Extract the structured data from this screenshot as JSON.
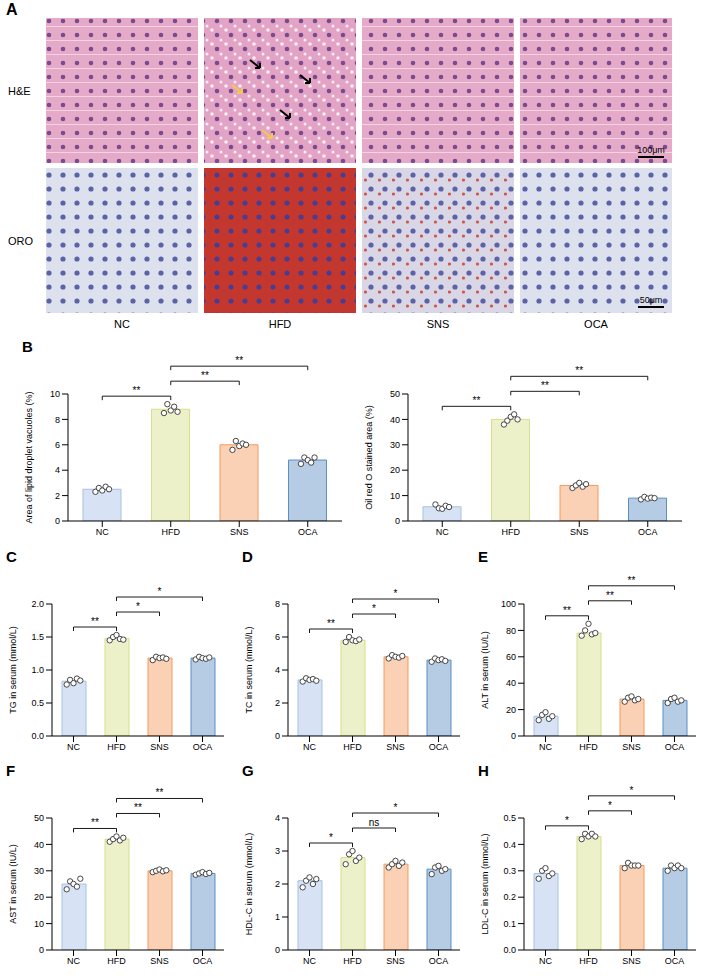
{
  "panel_a": {
    "letter": "A",
    "rows": [
      "H&E",
      "ORO"
    ],
    "columns": [
      "NC",
      "HFD",
      "SNS",
      "OCA"
    ],
    "scale_bars": [
      "100μm",
      "50μm"
    ]
  },
  "chart_data": [
    {
      "letter": "B",
      "type": "bar",
      "y_label": "Area of lipid droplet vacuoles (%)",
      "categories": [
        "NC",
        "HFD",
        "SNS",
        "OCA"
      ],
      "values": [
        2.5,
        8.8,
        6.0,
        4.8
      ],
      "points": [
        [
          2.3,
          2.6,
          2.4,
          2.7,
          2.5
        ],
        [
          8.5,
          9.2,
          8.7,
          9.0,
          8.6
        ],
        [
          5.6,
          6.3,
          5.9,
          6.1,
          6.0
        ],
        [
          4.5,
          5.0,
          4.8,
          4.6,
          5.0
        ]
      ],
      "colors": [
        "#a7c0e6",
        "#d7df8a",
        "#f39a5c",
        "#5a8fc4"
      ],
      "ylim": [
        0,
        10
      ],
      "yticks": [
        0,
        2,
        4,
        6,
        8,
        10
      ],
      "comparisons": [
        {
          "groups": [
            "NC",
            "HFD"
          ],
          "label": "**"
        },
        {
          "groups": [
            "HFD",
            "SNS"
          ],
          "label": "**"
        },
        {
          "groups": [
            "HFD",
            "OCA"
          ],
          "label": "**"
        }
      ]
    },
    {
      "letter": "",
      "type": "bar",
      "y_label": "Oil red O stained area (%)",
      "categories": [
        "NC",
        "HFD",
        "SNS",
        "OCA"
      ],
      "values": [
        5.6,
        40.0,
        14.0,
        9.0
      ],
      "points": [
        [
          6.5,
          5,
          4.8,
          6,
          5.5
        ],
        [
          38,
          39.5,
          41,
          42,
          40
        ],
        [
          13,
          14,
          15,
          13.5,
          14.5
        ],
        [
          8.5,
          9.5,
          8.8,
          9.2,
          9
        ]
      ],
      "colors": [
        "#a7c0e6",
        "#d7df8a",
        "#f39a5c",
        "#5a8fc4"
      ],
      "ylim": [
        0,
        50
      ],
      "yticks": [
        0,
        10,
        20,
        30,
        40,
        50
      ],
      "comparisons": [
        {
          "groups": [
            "NC",
            "HFD"
          ],
          "label": "**"
        },
        {
          "groups": [
            "HFD",
            "SNS"
          ],
          "label": "**"
        },
        {
          "groups": [
            "HFD",
            "OCA"
          ],
          "label": "**"
        }
      ]
    },
    {
      "letter": "C",
      "type": "bar",
      "y_label": "TG in serum (mmol/L)",
      "categories": [
        "NC",
        "HFD",
        "SNS",
        "OCA"
      ],
      "values": [
        0.83,
        1.48,
        1.18,
        1.18
      ],
      "points": [
        [
          0.78,
          0.85,
          0.8,
          0.87,
          0.84
        ],
        [
          1.45,
          1.5,
          1.53,
          1.47,
          1.46
        ],
        [
          1.15,
          1.2,
          1.18,
          1.19,
          1.17
        ],
        [
          1.16,
          1.2,
          1.18,
          1.17,
          1.19
        ]
      ],
      "colors": [
        "#a7c0e6",
        "#d7df8a",
        "#f39a5c",
        "#5a8fc4"
      ],
      "ylim": [
        0,
        2
      ],
      "yticks": [
        {
          "value": 0,
          "label": "0.0"
        },
        0.5,
        {
          "value": 1,
          "label": "1.0"
        },
        1.5,
        {
          "value": 2,
          "label": "2.0"
        }
      ],
      "comparisons": [
        {
          "groups": [
            "NC",
            "HFD"
          ],
          "label": "**"
        },
        {
          "groups": [
            "HFD",
            "SNS"
          ],
          "label": "*"
        },
        {
          "groups": [
            "HFD",
            "OCA"
          ],
          "label": "*"
        }
      ]
    },
    {
      "letter": "D",
      "type": "bar",
      "y_label": "TC in serum (mmol/L)",
      "categories": [
        "NC",
        "HFD",
        "SNS",
        "OCA"
      ],
      "values": [
        3.4,
        5.8,
        4.8,
        4.6
      ],
      "points": [
        [
          3.3,
          3.5,
          3.4,
          3.45,
          3.35
        ],
        [
          5.7,
          6.0,
          5.8,
          5.75,
          5.85
        ],
        [
          4.7,
          4.9,
          4.8,
          4.75,
          4.85
        ],
        [
          4.5,
          4.7,
          4.6,
          4.65,
          4.55
        ]
      ],
      "colors": [
        "#a7c0e6",
        "#d7df8a",
        "#f39a5c",
        "#5a8fc4"
      ],
      "ylim": [
        0,
        8
      ],
      "yticks": [
        0,
        2,
        4,
        6,
        8
      ],
      "comparisons": [
        {
          "groups": [
            "NC",
            "HFD"
          ],
          "label": "**"
        },
        {
          "groups": [
            "HFD",
            "SNS"
          ],
          "label": "*"
        },
        {
          "groups": [
            "HFD",
            "OCA"
          ],
          "label": "*"
        }
      ]
    },
    {
      "letter": "E",
      "type": "bar",
      "y_label": "ALT in serum (IU/L)",
      "categories": [
        "NC",
        "HFD",
        "SNS",
        "OCA"
      ],
      "values": [
        15,
        78,
        28,
        27
      ],
      "points": [
        [
          12,
          16,
          18,
          13,
          15
        ],
        [
          76,
          80,
          85,
          77,
          78
        ],
        [
          26,
          29,
          30,
          27,
          28
        ],
        [
          25,
          28,
          29,
          26,
          27
        ]
      ],
      "colors": [
        "#a7c0e6",
        "#d7df8a",
        "#f39a5c",
        "#5a8fc4"
      ],
      "ylim": [
        0,
        100
      ],
      "yticks": [
        0,
        20,
        40,
        60,
        80,
        100
      ],
      "comparisons": [
        {
          "groups": [
            "NC",
            "HFD"
          ],
          "label": "**"
        },
        {
          "groups": [
            "HFD",
            "SNS"
          ],
          "label": "**"
        },
        {
          "groups": [
            "HFD",
            "OCA"
          ],
          "label": "**"
        }
      ]
    },
    {
      "letter": "F",
      "type": "bar",
      "y_label": "AST in serum (IU/L)",
      "categories": [
        "NC",
        "HFD",
        "SNS",
        "OCA"
      ],
      "values": [
        25,
        42,
        30,
        29
      ],
      "points": [
        [
          23,
          26,
          25,
          24,
          27
        ],
        [
          41,
          42,
          43,
          41.5,
          42.5
        ],
        [
          29.5,
          30,
          30.5,
          29.8,
          30.2
        ],
        [
          28.5,
          29,
          29.5,
          28.8,
          29.2
        ]
      ],
      "colors": [
        "#a7c0e6",
        "#d7df8a",
        "#f39a5c",
        "#5a8fc4"
      ],
      "ylim": [
        0,
        50
      ],
      "yticks": [
        0,
        10,
        20,
        30,
        40,
        50
      ],
      "comparisons": [
        {
          "groups": [
            "NC",
            "HFD"
          ],
          "label": "**"
        },
        {
          "groups": [
            "HFD",
            "SNS"
          ],
          "label": "**"
        },
        {
          "groups": [
            "HFD",
            "OCA"
          ],
          "label": "**"
        }
      ]
    },
    {
      "letter": "G",
      "type": "bar",
      "y_label": "HDL-C in serum (mmol/L)",
      "categories": [
        "NC",
        "HFD",
        "SNS",
        "OCA"
      ],
      "values": [
        2.1,
        2.8,
        2.6,
        2.45
      ],
      "points": [
        [
          1.9,
          2.1,
          2.2,
          2.0,
          2.15
        ],
        [
          2.6,
          2.9,
          3.0,
          2.7,
          2.8
        ],
        [
          2.5,
          2.6,
          2.7,
          2.55,
          2.65
        ],
        [
          2.3,
          2.5,
          2.55,
          2.4,
          2.45
        ]
      ],
      "colors": [
        "#a7c0e6",
        "#d7df8a",
        "#f39a5c",
        "#5a8fc4"
      ],
      "ylim": [
        0,
        4
      ],
      "yticks": [
        0,
        1,
        2,
        3,
        4
      ],
      "comparisons": [
        {
          "groups": [
            "NC",
            "HFD"
          ],
          "label": "*"
        },
        {
          "groups": [
            "HFD",
            "SNS"
          ],
          "label": "ns"
        },
        {
          "groups": [
            "HFD",
            "OCA"
          ],
          "label": "*"
        }
      ]
    },
    {
      "letter": "H",
      "type": "bar",
      "y_label": "LDL-C in serum (mmol/L)",
      "categories": [
        "NC",
        "HFD",
        "SNS",
        "OCA"
      ],
      "values": [
        0.29,
        0.43,
        0.32,
        0.31
      ],
      "points": [
        [
          0.27,
          0.3,
          0.31,
          0.28,
          0.29
        ],
        [
          0.42,
          0.44,
          0.43,
          0.44,
          0.43
        ],
        [
          0.31,
          0.33,
          0.32,
          0.32,
          0.32
        ],
        [
          0.3,
          0.32,
          0.31,
          0.32,
          0.31
        ]
      ],
      "colors": [
        "#a7c0e6",
        "#d7df8a",
        "#f39a5c",
        "#5a8fc4"
      ],
      "ylim": [
        0,
        0.5
      ],
      "yticks": [
        {
          "value": 0,
          "label": "0.0"
        },
        0.1,
        0.2,
        0.3,
        0.4,
        0.5
      ],
      "comparisons": [
        {
          "groups": [
            "NC",
            "HFD"
          ],
          "label": "*"
        },
        {
          "groups": [
            "HFD",
            "SNS"
          ],
          "label": "*"
        },
        {
          "groups": [
            "HFD",
            "OCA"
          ],
          "label": "*"
        }
      ]
    }
  ]
}
